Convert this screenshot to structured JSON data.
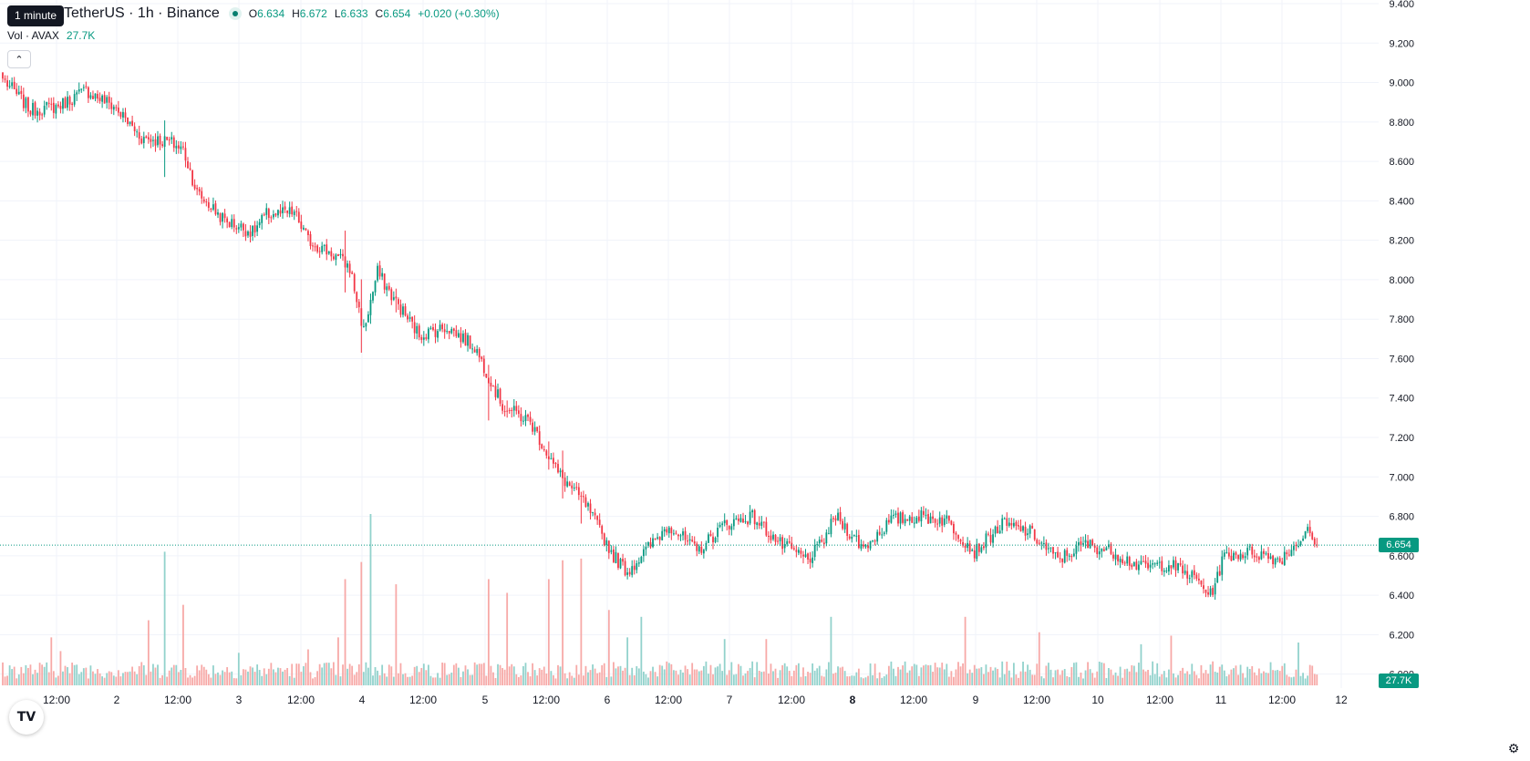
{
  "legend": {
    "tooltip": "1 minute",
    "symbol": "TetherUS · 1h · Binance",
    "open_label": "O",
    "open": "6.634",
    "high_label": "H",
    "high": "6.672",
    "low_label": "L",
    "low": "6.633",
    "close_label": "C",
    "close": "6.654",
    "change": "+0.020 (+0.30%)"
  },
  "volume_legend": {
    "label": "Vol · AVAX",
    "value": "27.7K"
  },
  "price_tag": "6.654",
  "volume_tag": "27.7K",
  "colors": {
    "up": "#089981",
    "down": "#f23645",
    "up_volume": "#92d2cc",
    "down_volume": "#f7a9a7",
    "grid": "#f0f3fa",
    "axis_text": "#131722"
  },
  "chart_data": {
    "type": "candlestick",
    "price_axis": {
      "ticks": [
        "9.400",
        "9.200",
        "9.000",
        "8.800",
        "8.600",
        "8.400",
        "8.200",
        "8.000",
        "7.800",
        "7.600",
        "7.400",
        "7.200",
        "7.000",
        "6.800",
        "6.600",
        "6.400",
        "6.200",
        "6.000"
      ],
      "ylim": [
        5.98,
        9.4
      ]
    },
    "time_axis": {
      "ticks": [
        "12:00",
        "2",
        "12:00",
        "3",
        "12:00",
        "4",
        "12:00",
        "5",
        "12:00",
        "6",
        "12:00",
        "7",
        "12:00",
        "8",
        "12:00",
        "9",
        "12:00",
        "10",
        "12:00",
        "11",
        "12:00",
        "12"
      ],
      "bold_ticks": [
        "8"
      ]
    },
    "last_price": 6.654,
    "grid": true,
    "close_anchors": [
      [
        0,
        9.02
      ],
      [
        12,
        8.86
      ],
      [
        24,
        8.88
      ],
      [
        36,
        8.96
      ],
      [
        48,
        8.88
      ],
      [
        60,
        8.72
      ],
      [
        72,
        8.7
      ],
      [
        78,
        8.66
      ],
      [
        84,
        8.44
      ],
      [
        96,
        8.3
      ],
      [
        108,
        8.24
      ],
      [
        114,
        8.33
      ],
      [
        126,
        8.34
      ],
      [
        132,
        8.2
      ],
      [
        144,
        8.12
      ],
      [
        150,
        8.06
      ],
      [
        156,
        7.74
      ],
      [
        162,
        8.04
      ],
      [
        168,
        7.92
      ],
      [
        180,
        7.72
      ],
      [
        192,
        7.76
      ],
      [
        204,
        7.66
      ],
      [
        216,
        7.36
      ],
      [
        228,
        7.28
      ],
      [
        240,
        7.02
      ],
      [
        252,
        6.86
      ],
      [
        264,
        6.6
      ],
      [
        270,
        6.52
      ],
      [
        276,
        6.6
      ],
      [
        288,
        6.76
      ],
      [
        300,
        6.62
      ],
      [
        312,
        6.76
      ],
      [
        324,
        6.8
      ],
      [
        336,
        6.66
      ],
      [
        348,
        6.58
      ],
      [
        354,
        6.66
      ],
      [
        360,
        6.8
      ],
      [
        372,
        6.64
      ],
      [
        384,
        6.78
      ],
      [
        396,
        6.8
      ],
      [
        408,
        6.78
      ],
      [
        420,
        6.62
      ],
      [
        432,
        6.76
      ],
      [
        444,
        6.72
      ],
      [
        456,
        6.58
      ],
      [
        468,
        6.66
      ],
      [
        480,
        6.62
      ],
      [
        492,
        6.54
      ],
      [
        504,
        6.56
      ],
      [
        516,
        6.48
      ],
      [
        522,
        6.4
      ],
      [
        528,
        6.6
      ],
      [
        540,
        6.62
      ],
      [
        552,
        6.58
      ],
      [
        564,
        6.72
      ],
      [
        568,
        6.654
      ]
    ],
    "volume_spikes": [
      [
        21,
        0.28
      ],
      [
        25,
        0.2
      ],
      [
        63,
        0.38
      ],
      [
        70,
        0.78
      ],
      [
        78,
        0.47
      ],
      [
        102,
        0.19
      ],
      [
        132,
        0.21
      ],
      [
        145,
        0.28
      ],
      [
        148,
        0.62
      ],
      [
        155,
        0.72
      ],
      [
        159,
        1.0
      ],
      [
        170,
        0.59
      ],
      [
        210,
        0.62
      ],
      [
        218,
        0.54
      ],
      [
        236,
        0.62
      ],
      [
        242,
        0.73
      ],
      [
        250,
        0.74
      ],
      [
        262,
        0.44
      ],
      [
        270,
        0.28
      ],
      [
        276,
        0.4
      ],
      [
        312,
        0.27
      ],
      [
        330,
        0.27
      ],
      [
        358,
        0.4
      ],
      [
        416,
        0.4
      ],
      [
        448,
        0.31
      ],
      [
        492,
        0.24
      ],
      [
        505,
        0.29
      ],
      [
        560,
        0.25
      ]
    ],
    "volume_ylim": [
      0,
      1
    ]
  }
}
